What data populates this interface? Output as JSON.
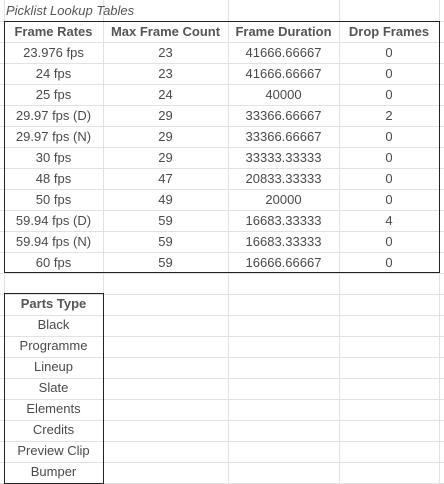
{
  "title": "Picklist Lookup Tables",
  "frame_table": {
    "headers": [
      "Frame Rates",
      "Max Frame Count",
      "Frame Duration",
      "Drop Frames"
    ],
    "rows": [
      [
        "23.976 fps",
        "23",
        "41666.66667",
        "0"
      ],
      [
        "24 fps",
        "23",
        "41666.66667",
        "0"
      ],
      [
        "25 fps",
        "24",
        "40000",
        "0"
      ],
      [
        "29.97 fps (D)",
        "29",
        "33366.66667",
        "2"
      ],
      [
        "29.97 fps (N)",
        "29",
        "33366.66667",
        "0"
      ],
      [
        "30 fps",
        "29",
        "33333.33333",
        "0"
      ],
      [
        "48 fps",
        "47",
        "20833.33333",
        "0"
      ],
      [
        "50 fps",
        "49",
        "20000",
        "0"
      ],
      [
        "59.94 fps (D)",
        "59",
        "16683.33333",
        "4"
      ],
      [
        "59.94 fps (N)",
        "59",
        "16683.33333",
        "0"
      ],
      [
        "60 fps",
        "59",
        "16666.66667",
        "0"
      ]
    ]
  },
  "parts_table": {
    "header": "Parts Type",
    "items": [
      "Black",
      "Programme",
      "Lineup",
      "Slate",
      "Elements",
      "Credits",
      "Preview Clip",
      "Bumper"
    ]
  }
}
